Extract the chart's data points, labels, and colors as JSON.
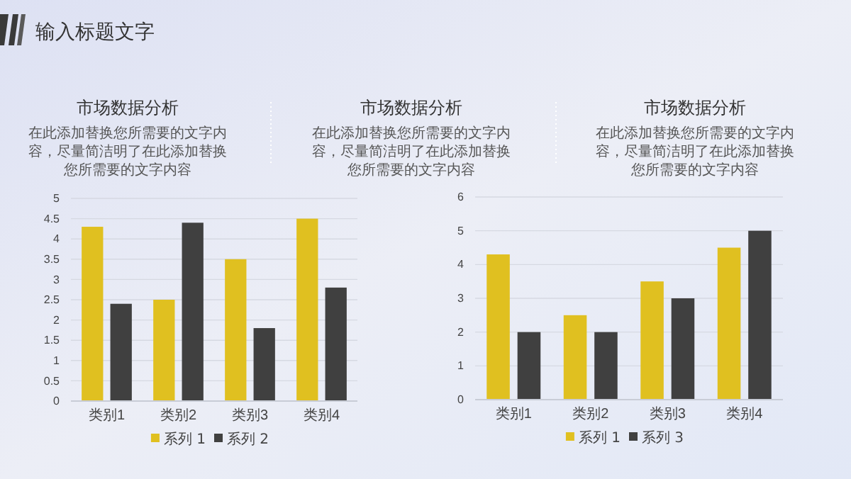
{
  "chart_data": [
    {
      "type": "bar",
      "title": "市场数据分析",
      "subtitle": "在此添加替换您所需要的文字内容，尽量简洁明了在此添加替换您所需要的文字内容",
      "annotations": [
        "输入标题文字"
      ],
      "categories": [
        "类别1",
        "类别2",
        "类别3",
        "类别4"
      ],
      "series": [
        {
          "name": "系列 1",
          "color": "#e0c020",
          "values": [
            4.3,
            2.5,
            3.5,
            4.5
          ]
        },
        {
          "name": "系列 2",
          "color": "#404040",
          "values": [
            2.4,
            4.4,
            1.8,
            2.8
          ]
        }
      ],
      "ylim": [
        0,
        5
      ],
      "yticks": [
        0,
        0.5,
        1,
        1.5,
        2,
        2.5,
        3,
        3.5,
        4,
        4.5,
        5
      ],
      "grid": "y",
      "legend": "bottom"
    },
    {
      "type": "other",
      "title": "市场数据分析",
      "subtitle": "在此添加替换您所需要的文字内容，尽量简洁明了在此添加替换您所需要的文字内容"
    },
    {
      "type": "bar",
      "title": "市场数据分析",
      "subtitle": "在此添加替换您所需要的文字内容，尽量简洁明了在此添加替换您所需要的文字内容",
      "categories": [
        "类别1",
        "类别2",
        "类别3",
        "类别4"
      ],
      "series": [
        {
          "name": "系列 1",
          "color": "#e0c020",
          "values": [
            4.3,
            2.5,
            3.5,
            4.5
          ]
        },
        {
          "name": "系列 3",
          "color": "#404040",
          "values": [
            2,
            2,
            3,
            5
          ]
        }
      ],
      "ylim": [
        0,
        6
      ],
      "yticks": [
        0,
        1,
        2,
        3,
        4,
        5,
        6
      ],
      "grid": "y",
      "legend": "bottom"
    }
  ]
}
